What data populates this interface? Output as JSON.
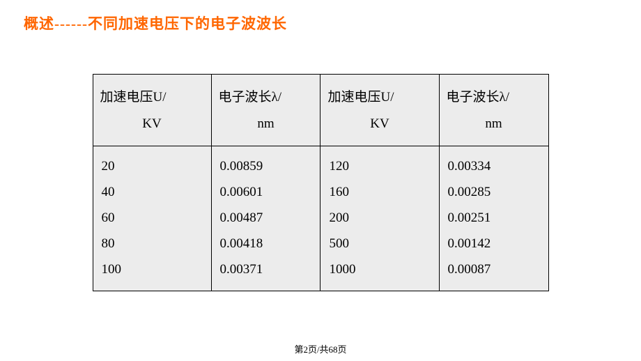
{
  "title": "概述------不同加速电压下的电子波波长",
  "table": {
    "headers": [
      {
        "line1": "加速电压U/",
        "line2": "KV"
      },
      {
        "line1": "电子波长λ/",
        "line2": "nm"
      },
      {
        "line1": "加速电压U/",
        "line2": "KV"
      },
      {
        "line1": "电子波长λ/",
        "line2": "nm"
      }
    ],
    "col1": [
      "20",
      "40",
      "60",
      "80",
      "100"
    ],
    "col2": [
      "0.00859",
      "0.00601",
      "0.00487",
      "0.00418",
      "0.00371"
    ],
    "col3": [
      "120",
      "160",
      "200",
      "500",
      "1000"
    ],
    "col4": [
      "0.00334",
      "0.00285",
      "0.00251",
      "0.00142",
      "0.00087"
    ]
  },
  "footer": "第2页/共68页",
  "colors": {
    "title_color": "#ff6600",
    "background": "#ffffff",
    "table_bg": "#ececec",
    "border": "#000000",
    "text": "#000000"
  },
  "typography": {
    "title_fontsize": 21,
    "table_fontsize": 19,
    "footer_fontsize": 13
  }
}
